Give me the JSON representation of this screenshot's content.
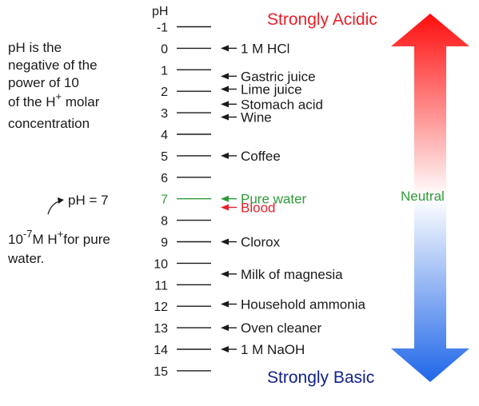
{
  "explanation": {
    "lines": [
      "pH is the",
      "negative of the",
      "power of 10"
    ],
    "line4_prefix": "of the H",
    "line4_sup": "+",
    "line4_suffix": " molar",
    "line5": "concentration"
  },
  "example": {
    "ph_eq": "pH = 7",
    "base": "10",
    "exp": "-7",
    "unit": "M  H",
    "ion_sup": "+",
    "suffix": "for pure",
    "line2": "water."
  },
  "scale": {
    "header": "pH",
    "ticks": [
      "-1",
      "0",
      "1",
      "2",
      "3",
      "4",
      "5",
      "6",
      "7",
      "8",
      "9",
      "10",
      "11",
      "12",
      "13",
      "14",
      "15"
    ],
    "highlight_tick": "7",
    "highlight_color": "#2f9b3a",
    "tick_color": "#1a1a1a"
  },
  "substances": [
    {
      "name": "1 M HCl",
      "ph": "0",
      "color": "#1a1a1a"
    },
    {
      "name": "Gastric juice",
      "ph": "1.3",
      "color": "#1a1a1a"
    },
    {
      "name": "Lime juice",
      "ph": "1.9",
      "color": "#1a1a1a"
    },
    {
      "name": "Stomach acid",
      "ph": "2.6",
      "color": "#1a1a1a"
    },
    {
      "name": "Wine",
      "ph": "3.2",
      "color": "#1a1a1a"
    },
    {
      "name": "Coffee",
      "ph": "5",
      "color": "#1a1a1a"
    },
    {
      "name": "Pure water",
      "ph": "7",
      "color": "#2f9b3a"
    },
    {
      "name": "Blood",
      "ph": "7.4",
      "color": "#e8202a"
    },
    {
      "name": "Clorox",
      "ph": "9",
      "color": "#1a1a1a"
    },
    {
      "name": "Milk of magnesia",
      "ph": "10.5",
      "color": "#1a1a1a"
    },
    {
      "name": "Household ammonia",
      "ph": "11.9",
      "color": "#1a1a1a"
    },
    {
      "name": "Oven cleaner",
      "ph": "13",
      "color": "#1a1a1a"
    },
    {
      "name": "1 M NaOH",
      "ph": "14",
      "color": "#1a1a1a"
    }
  ],
  "gradient_arrow": {
    "top_label": "Strongly Acidic",
    "bottom_label": "Strongly Basic",
    "middle_label": "Neutral",
    "colors": {
      "acid": "#ff0d0d",
      "neutral": "#ffffff",
      "base": "#1f66e8",
      "acid_text": "#e8202a",
      "base_text": "#13218f",
      "neutral_text": "#2f9b3a"
    }
  }
}
